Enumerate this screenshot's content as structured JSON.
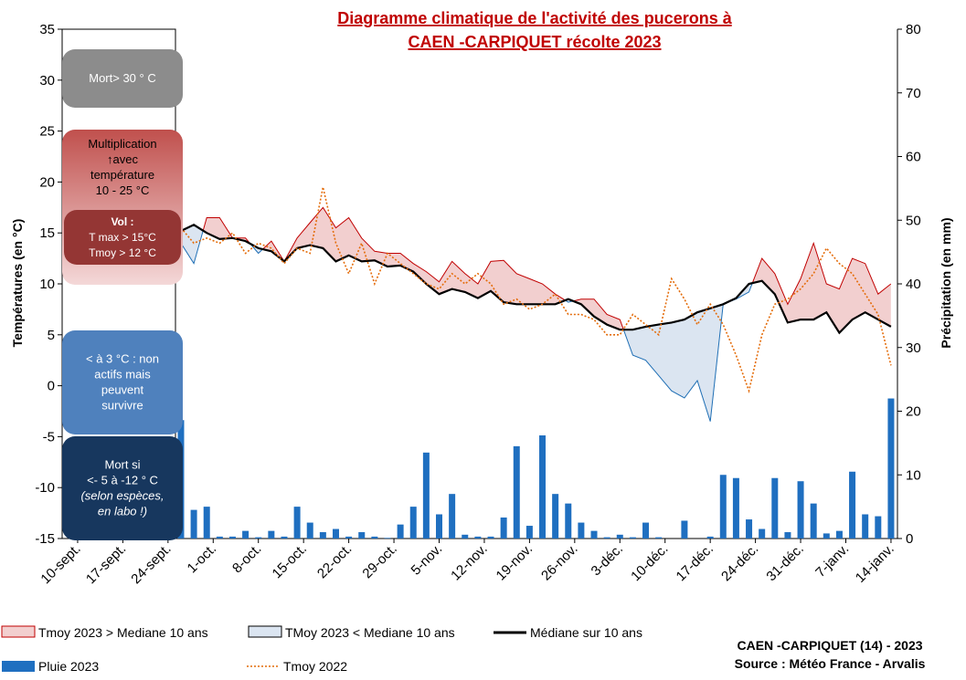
{
  "chart_data": {
    "type": "line",
    "title_lines": [
      "Diagramme climatique de l'activité des pucerons à",
      "CAEN -CARPIQUET récolte 2023"
    ],
    "y_label": "Températures (en °C)",
    "y2_label": "Précipitation (en mm)",
    "x": [
      16,
      18,
      20,
      22,
      24,
      26,
      28,
      30,
      32,
      34,
      36,
      38,
      40,
      42,
      44,
      46,
      48,
      50,
      52,
      54,
      56,
      58,
      60,
      62,
      64,
      66,
      68,
      70,
      72,
      74,
      76,
      78,
      80,
      82,
      84,
      86,
      88,
      90,
      92,
      94,
      96,
      98,
      100,
      102,
      104,
      106,
      108,
      110,
      112,
      114,
      116,
      118,
      120,
      122,
      124,
      126
    ],
    "xlim": [
      -2.4,
      127
    ],
    "xticks": [
      {
        "value": 0,
        "label": "10-sept."
      },
      {
        "value": 7,
        "label": "17-sept."
      },
      {
        "value": 14,
        "label": "24-sept."
      },
      {
        "value": 21,
        "label": "1-oct."
      },
      {
        "value": 28,
        "label": "8-oct."
      },
      {
        "value": 35,
        "label": "15-oct."
      },
      {
        "value": 42,
        "label": "22-oct."
      },
      {
        "value": 49,
        "label": "29-oct."
      },
      {
        "value": 56,
        "label": "5-nov."
      },
      {
        "value": 63,
        "label": "12-nov."
      },
      {
        "value": 70,
        "label": "19-nov."
      },
      {
        "value": 77,
        "label": "26-nov."
      },
      {
        "value": 84,
        "label": "3-déc."
      },
      {
        "value": 91,
        "label": "10-déc."
      },
      {
        "value": 98,
        "label": "17-déc."
      },
      {
        "value": 105,
        "label": "24-déc."
      },
      {
        "value": 112,
        "label": "31-déc."
      },
      {
        "value": 119,
        "label": "7-janv."
      },
      {
        "value": 126,
        "label": "14-janv."
      }
    ],
    "ylim": [
      -15,
      35
    ],
    "yticks": [
      -15,
      -10,
      -5,
      0,
      5,
      10,
      15,
      20,
      25,
      30,
      35
    ],
    "y2lim": [
      0,
      80
    ],
    "y2ticks": [
      0,
      10,
      20,
      30,
      40,
      50,
      60,
      70,
      80
    ],
    "grid": false,
    "series": [
      {
        "name": "Médiane sur 10 ans",
        "color": "#000000",
        "values": [
          15.2,
          15.8,
          15,
          14.4,
          14.5,
          14.2,
          13.5,
          13.2,
          12.2,
          13.5,
          13.8,
          13.5,
          12.2,
          12.8,
          12.2,
          12.3,
          11.7,
          11.8,
          11.2,
          10,
          9,
          9.5,
          9.2,
          8.6,
          9.3,
          8.2,
          8,
          8,
          8,
          8,
          8.5,
          8,
          6.8,
          6,
          5.5,
          5.5,
          5.8,
          6,
          6.2,
          6.5,
          7.2,
          7.6,
          8,
          8.6,
          10,
          10.3,
          9,
          6.2,
          6.5,
          6.5,
          7.2,
          5.2,
          6.5,
          7.2,
          6.5,
          5.8
        ]
      },
      {
        "values": [
          14,
          12,
          16.5,
          16.5,
          14.5,
          14.5,
          13,
          14.2,
          12.2,
          14.5,
          16,
          17.5,
          15.5,
          16.5,
          14.5,
          13.2,
          13,
          13,
          12,
          11.2,
          10.2,
          12.2,
          11,
          10,
          12.2,
          12.3,
          11,
          10.5,
          10,
          9,
          8.2,
          8.5,
          8.5,
          7,
          6.5,
          3,
          2.5,
          1,
          -0.5,
          -1.2,
          0.5,
          -3.5,
          8,
          8.5,
          9.2,
          12.5,
          11,
          8,
          10.5,
          14,
          10,
          9.5,
          12.5,
          12,
          9,
          10
        ]
      },
      {
        "name": "Tmoy 2022",
        "color": "#e46c0a",
        "dashed": true,
        "values": [
          15.5,
          14,
          14.5,
          14,
          15,
          13,
          14,
          13.5,
          12,
          13.5,
          13,
          19.5,
          14,
          11,
          14,
          10,
          13,
          12,
          11,
          10,
          9.5,
          11,
          10,
          11,
          10,
          8,
          8.5,
          7.5,
          8,
          9,
          7,
          7,
          6.5,
          5,
          5,
          7,
          6,
          5,
          10.5,
          8.5,
          6,
          8,
          6,
          3,
          -0.5,
          5,
          8,
          8.5,
          9.5,
          11,
          13.5,
          12,
          11,
          9,
          7,
          2
        ]
      },
      {
        "name": "Pluie 2023",
        "color": "#1f6fc0",
        "type": "bar",
        "axis": "y2",
        "values": [
          18.6,
          4.5,
          5,
          0.3,
          0.3,
          1.2,
          0.2,
          1.2,
          0.3,
          5,
          2.5,
          1,
          1.5,
          0.3,
          1,
          0.3,
          0.1,
          2.2,
          5,
          13.5,
          3.8,
          7,
          0.6,
          0.3,
          0.3,
          3.3,
          14.5,
          2,
          16.2,
          7,
          5.5,
          2.5,
          1.2,
          0.2,
          0.6,
          0.2,
          2.5,
          0.2,
          0,
          2.8,
          0,
          0.3,
          10,
          9.5,
          3,
          1.5,
          9.5,
          1,
          9,
          5.5,
          0.8,
          1.2,
          10.5,
          3.8,
          3.5,
          22
        ]
      }
    ],
    "fill_between": {
      "upper": 1,
      "lower": 0,
      "above": {
        "name": "Tmoy 2023 > Mediane 10 ans",
        "color": "#f2cfcf",
        "edge": "#c00000"
      },
      "below": {
        "name": "TMoy 2023 < Mediane 10 ans",
        "color": "#dbe5f1",
        "edge": "#1f6fb5"
      }
    },
    "annotations": [
      {
        "lines": [
          "Mort> 30 ° C"
        ],
        "color": "#8c8c8c"
      },
      {
        "lines": [
          "Multiplication",
          "↑avec",
          "température",
          "10 - 25 °C"
        ],
        "color": "#c0504d"
      },
      {
        "lines": [
          "Vol :",
          "T max > 15°C",
          "Tmoy > 12 °C"
        ],
        "color": "#943634"
      },
      {
        "lines": [
          "< à 3 °C : non",
          "actifs mais",
          "peuvent",
          "survivre"
        ],
        "color": "#4f81bd"
      },
      {
        "lines": [
          "Mort  si",
          "<- 5 à -12 ° C",
          "(selon espèces,",
          "en labo !)"
        ],
        "color": "#17375e"
      }
    ],
    "footer": [
      "CAEN -CARPIQUET (14) - 2023",
      "Source : Météo France - Arvalis"
    ]
  }
}
